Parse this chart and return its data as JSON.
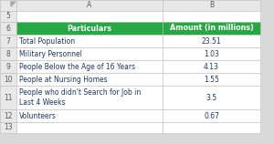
{
  "header_bg": "#27A844",
  "header_text_color": "#FFFFFF",
  "cell_bg": "#FFFFFF",
  "cell_text_color": "#1F3864",
  "grid_color": "#C0C0C0",
  "row_num_bg": "#E8E8E8",
  "row_num_text_color": "#595959",
  "sheet_bg": "#D9D9D9",
  "col_letter_text": "#595959",
  "headers": [
    "Particulars",
    "Amount (in millions)"
  ],
  "rows": [
    [
      "Total Population",
      "23.51"
    ],
    [
      "Military Personnel",
      "1.03"
    ],
    [
      "People Below the Age of 16 Years",
      "4.13"
    ],
    [
      "People at Nursing Homes",
      "1.55"
    ],
    [
      "People who didn't Search for Job in\nLast 4 Weeks",
      "3.5"
    ],
    [
      "Volunteers",
      "0.67"
    ]
  ],
  "row_numbers": [
    "5",
    "6",
    "7",
    "8",
    "9",
    "10",
    "11",
    "12",
    "13"
  ],
  "col_letters": [
    "A",
    "B"
  ],
  "font_size": 5.5,
  "header_font_size": 5.8
}
